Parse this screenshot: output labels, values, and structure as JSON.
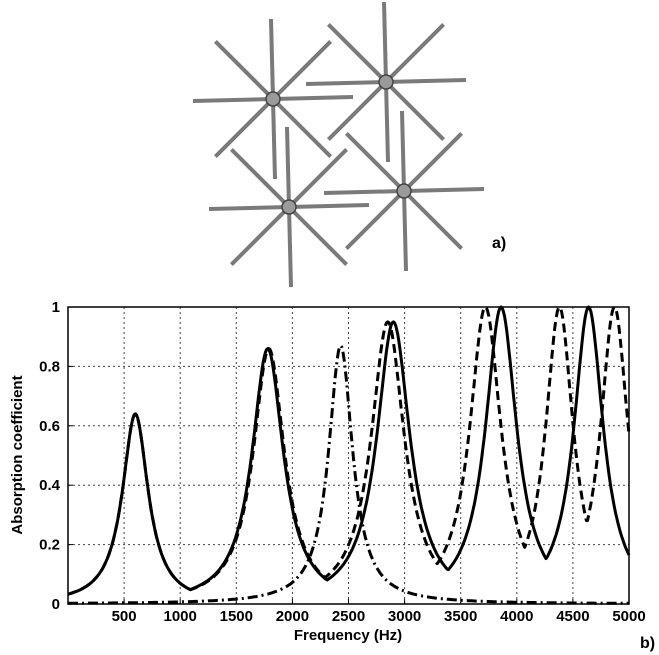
{
  "panels": {
    "a_label": "a)",
    "b_label": "b)"
  },
  "diagram": {
    "colors": {
      "spoke": "#7a7a7a",
      "hub": "#9a9a9a"
    },
    "stars": [
      {
        "name": "star-top-left"
      },
      {
        "name": "star-top-right"
      },
      {
        "name": "star-bottom-left"
      },
      {
        "name": "star-bottom-right"
      }
    ]
  },
  "chart_data": {
    "type": "line",
    "title": "",
    "xlabel": "Frequency (Hz)",
    "ylabel": "Absorption coefficient",
    "xlim": [
      0,
      5000
    ],
    "ylim": [
      0,
      1
    ],
    "xticks": [
      500,
      1000,
      1500,
      2000,
      2500,
      3000,
      3500,
      4000,
      4500,
      5000
    ],
    "yticks": [
      0,
      0.2,
      0.4,
      0.6,
      0.8,
      1
    ],
    "grid": true,
    "legend": "none",
    "series": [
      {
        "style": "solid",
        "peaks": [
          [
            600,
            0.64,
            140
          ],
          [
            1780,
            0.86,
            170
          ],
          [
            2900,
            0.95,
            180
          ],
          [
            3860,
            1.0,
            170
          ],
          [
            4640,
            1.0,
            160
          ]
        ]
      },
      {
        "style": "dashed",
        "peaks": [
          [
            600,
            0.64,
            140
          ],
          [
            1790,
            0.86,
            170
          ],
          [
            2850,
            0.95,
            180
          ],
          [
            3720,
            1.0,
            170
          ],
          [
            4380,
            1.0,
            150
          ],
          [
            4870,
            1.0,
            150
          ]
        ]
      },
      {
        "style": "dashdot",
        "peaks": [
          [
            2430,
            0.87,
            130
          ]
        ]
      }
    ]
  }
}
